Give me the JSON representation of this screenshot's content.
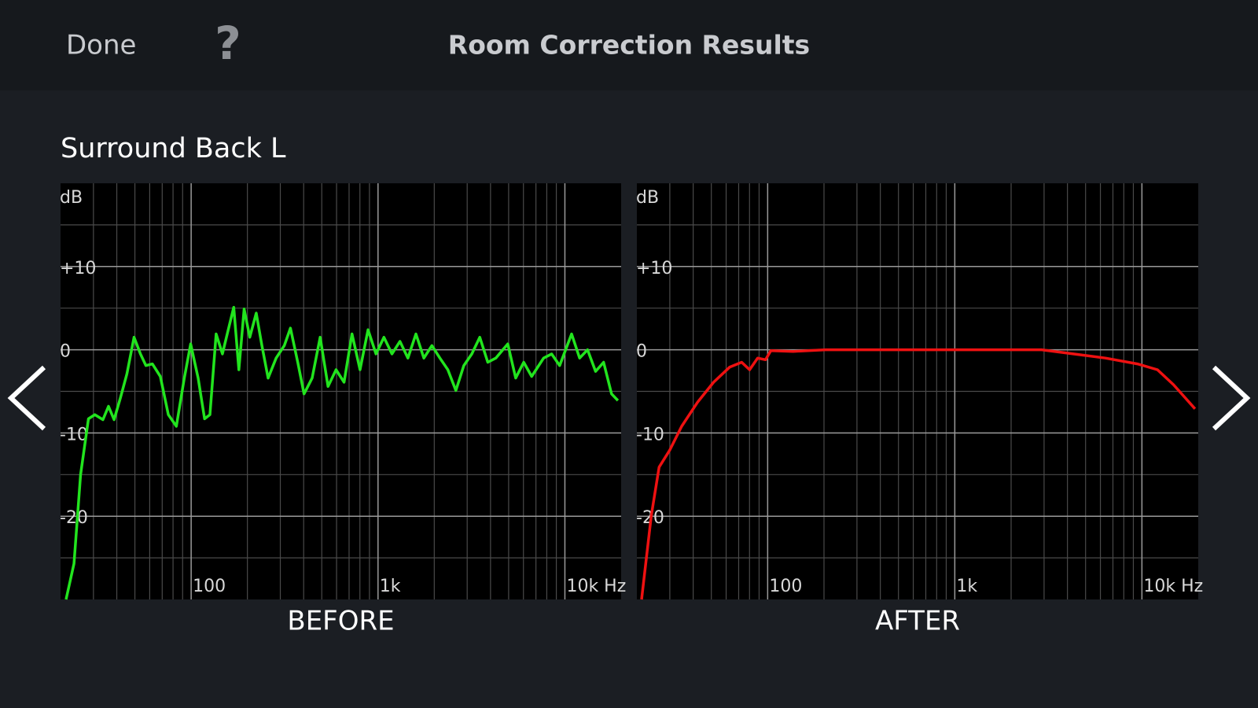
{
  "header": {
    "done": "Done",
    "help": "?",
    "title": "Room Correction Results"
  },
  "speaker": "Surround Back L",
  "chart_data": [
    {
      "type": "line",
      "title": "BEFORE",
      "y_label": "dB",
      "xscale": "log",
      "color": "#22e41e",
      "xlim": [
        20,
        20000
      ],
      "xticks": [
        100,
        {
          "value": 1000,
          "label": "1k"
        },
        {
          "value": 10000,
          "label": "10k Hz"
        }
      ],
      "x_minor_grid": [
        30,
        40,
        50,
        60,
        70,
        80,
        90,
        200,
        300,
        400,
        500,
        600,
        700,
        800,
        900,
        2000,
        3000,
        4000,
        5000,
        6000,
        7000,
        8000,
        9000
      ],
      "ylim": [
        -30,
        20
      ],
      "yticks": [
        {
          "value": 10,
          "label": "+10"
        },
        0,
        -10,
        -20
      ],
      "y_minor_grid": [
        15,
        5,
        -5,
        -15,
        -25
      ],
      "x": [
        21.4,
        23.6,
        25.6,
        28.2,
        30.5,
        33.7,
        36.1,
        38.7,
        41.8,
        45.3,
        49.5,
        53.5,
        57.3,
        62,
        68.4,
        75.5,
        83.3,
        91.9,
        99.4,
        109,
        118,
        126,
        136,
        147,
        158,
        169,
        180,
        192,
        206,
        223,
        239,
        258,
        285,
        315,
        340,
        372,
        402,
        444,
        490,
        540,
        596,
        658,
        726,
        801,
        884,
        975,
        1076,
        1187,
        1310,
        1445,
        1595,
        1760,
        1942,
        2143,
        2364,
        2609,
        2879,
        3177,
        3505,
        3868,
        4268,
        4945,
        5456,
        6021,
        6643,
        7697,
        8494,
        9372,
        10866,
        11990,
        13230,
        14598,
        16107,
        17773,
        19219
      ],
      "values": [
        -30,
        -25.7,
        -15,
        -8.3,
        -7.8,
        -8.4,
        -6.8,
        -8.4,
        -5.8,
        -2.9,
        1.5,
        -0.5,
        -1.9,
        -1.7,
        -3.2,
        -7.8,
        -9.2,
        -3.4,
        0.7,
        -3.4,
        -8.3,
        -7.8,
        1.9,
        -0.5,
        2.4,
        5.1,
        -2.4,
        4.9,
        1.5,
        4.4,
        0.5,
        -3.4,
        -1.0,
        0.5,
        2.6,
        -1.5,
        -5.3,
        -3.4,
        1.5,
        -4.4,
        -2.4,
        -3.9,
        1.9,
        -2.4,
        2.4,
        -0.5,
        1.5,
        -0.5,
        1.0,
        -1.0,
        1.9,
        -1.0,
        0.5,
        -1.0,
        -2.4,
        -4.9,
        -1.9,
        -0.5,
        1.5,
        -1.5,
        -1.0,
        0.7,
        -3.4,
        -1.5,
        -3.2,
        -1.0,
        -0.5,
        -1.9,
        1.9,
        -1.0,
        0,
        -2.6,
        -1.5,
        -5.3,
        -6.1
      ]
    },
    {
      "type": "line",
      "title": "AFTER",
      "y_label": "dB",
      "xscale": "log",
      "color": "#ee1111",
      "xlim": [
        20,
        20000
      ],
      "xticks": [
        100,
        {
          "value": 1000,
          "label": "1k"
        },
        {
          "value": 10000,
          "label": "10k Hz"
        }
      ],
      "x_minor_grid": [
        30,
        40,
        50,
        60,
        70,
        80,
        90,
        200,
        300,
        400,
        500,
        600,
        700,
        800,
        900,
        2000,
        3000,
        4000,
        5000,
        6000,
        7000,
        8000,
        9000
      ],
      "ylim": [
        -30,
        20
      ],
      "yticks": [
        {
          "value": 10,
          "label": "+10"
        },
        0,
        -10,
        -20
      ],
      "y_minor_grid": [
        15,
        5,
        -5,
        -15,
        -25
      ],
      "x": [
        21.2,
        23.9,
        26.3,
        29.9,
        34.7,
        42.2,
        51.4,
        62.6,
        72.6,
        80.1,
        88.4,
        97.5,
        104,
        137,
        204,
        368,
        664,
        1323,
        2907,
        4308,
        6389,
        9466,
        12110,
        14742,
        17085,
        19219
      ],
      "values": [
        -30,
        -19.9,
        -14.1,
        -12.1,
        -9.2,
        -6.3,
        -3.9,
        -2.1,
        -1.5,
        -2.4,
        -1.0,
        -1.2,
        -0.1,
        -0.2,
        0,
        0,
        0,
        0,
        0,
        -0.5,
        -1.0,
        -1.7,
        -2.4,
        -4.2,
        -5.8,
        -7.1
      ]
    }
  ]
}
